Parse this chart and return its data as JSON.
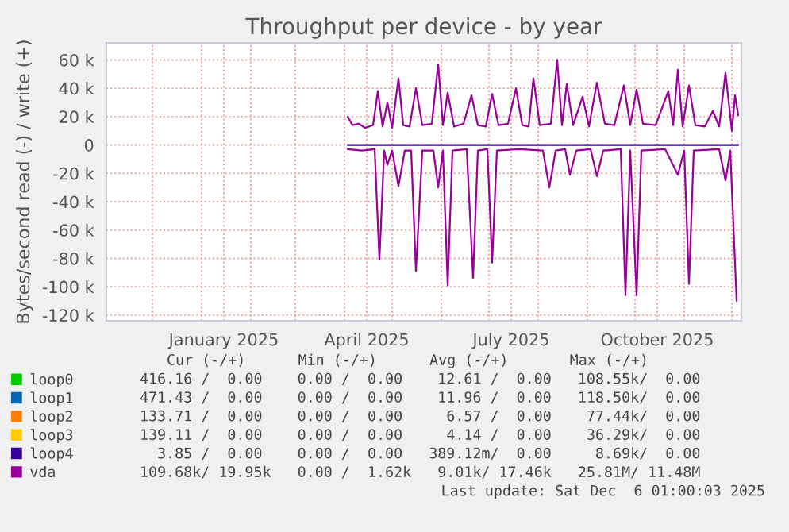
{
  "chart_data": {
    "type": "line",
    "title": "Throughput per device - by year",
    "ylabel": "Bytes/second read (-) / write (+)",
    "xlim": [
      "2024-11-02",
      "2025-12-07"
    ],
    "xticks": [
      {
        "value": "2024-12-01",
        "label": null
      },
      {
        "value": "2025-01-01",
        "label": null
      },
      {
        "value": "2025-01-15",
        "label": "January 2025"
      },
      {
        "value": "2025-02-01",
        "label": null
      },
      {
        "value": "2025-03-01",
        "label": null
      },
      {
        "value": "2025-04-01",
        "label": null
      },
      {
        "value": "2025-04-15",
        "label": "April 2025"
      },
      {
        "value": "2025-05-01",
        "label": null
      },
      {
        "value": "2025-06-01",
        "label": null
      },
      {
        "value": "2025-07-01",
        "label": null
      },
      {
        "value": "2025-07-15",
        "label": "July 2025"
      },
      {
        "value": "2025-08-01",
        "label": null
      },
      {
        "value": "2025-09-01",
        "label": null
      },
      {
        "value": "2025-10-01",
        "label": null
      },
      {
        "value": "2025-10-15",
        "label": "October 2025"
      },
      {
        "value": "2025-11-01",
        "label": null
      },
      {
        "value": "2025-12-01",
        "label": null
      }
    ],
    "ylim": [
      -124000,
      72000
    ],
    "yticks": [
      {
        "value": -120000,
        "label": "-120 k"
      },
      {
        "value": -100000,
        "label": "-100 k"
      },
      {
        "value": -80000,
        "label": "-80 k"
      },
      {
        "value": -60000,
        "label": "-60 k"
      },
      {
        "value": -40000,
        "label": "-40 k"
      },
      {
        "value": -20000,
        "label": "-20 k"
      },
      0,
      {
        "value": 20000,
        "label": "20 k"
      },
      {
        "value": 40000,
        "label": "40 k"
      },
      {
        "value": 60000,
        "label": "60 k"
      }
    ],
    "grid": true,
    "legend": "bottom",
    "marker": "none",
    "line_style": "solid",
    "series": [
      {
        "name": "loop0",
        "color": "#00cc00"
      },
      {
        "name": "loop1",
        "color": "#0066b3"
      },
      {
        "name": "loop2",
        "color": "#ff8000"
      },
      {
        "name": "loop3",
        "color": "#ffcc00"
      },
      {
        "name": "loop4",
        "color": "#330099",
        "x": [
          "2025-04-03",
          "2025-12-05"
        ],
        "values": [
          0,
          0
        ]
      },
      {
        "name": "vda",
        "color": "#990099",
        "x": [
          "2025-04-03",
          "2025-04-06",
          "2025-04-10",
          "2025-04-14",
          "2025-04-19",
          "2025-04-22",
          "2025-04-25",
          "2025-04-28",
          "2025-05-01",
          "2025-05-05",
          "2025-05-08",
          "2025-05-12",
          "2025-05-16",
          "2025-05-20",
          "2025-05-26",
          "2025-05-30",
          "2025-06-02",
          "2025-06-05",
          "2025-06-09",
          "2025-06-15",
          "2025-06-20",
          "2025-06-24",
          "2025-06-29",
          "2025-07-03",
          "2025-07-07",
          "2025-07-13",
          "2025-07-18",
          "2025-07-22",
          "2025-07-26",
          "2025-07-29",
          "2025-08-02",
          "2025-08-09",
          "2025-08-13",
          "2025-08-16",
          "2025-08-19",
          "2025-08-23",
          "2025-08-29",
          "2025-09-02",
          "2025-09-07",
          "2025-09-12",
          "2025-09-18",
          "2025-09-24",
          "2025-09-28",
          "2025-10-02",
          "2025-10-06",
          "2025-10-14",
          "2025-10-22",
          "2025-10-25",
          "2025-10-28",
          "2025-10-31",
          "2025-11-04",
          "2025-11-08",
          "2025-11-14",
          "2025-11-19",
          "2025-11-23",
          "2025-11-27",
          "2025-12-01",
          "2025-12-03",
          "2025-12-05"
        ],
        "values": [
          20000,
          14000,
          15000,
          12000,
          14000,
          38000,
          13000,
          30000,
          12000,
          47000,
          14000,
          13000,
          40000,
          14000,
          15000,
          57000,
          14000,
          37000,
          13000,
          15000,
          35000,
          14000,
          13000,
          36000,
          14000,
          15000,
          40000,
          14000,
          13000,
          47000,
          14000,
          15000,
          60000,
          14000,
          43000,
          14000,
          34000,
          13000,
          44000,
          15000,
          14000,
          42000,
          14000,
          39000,
          15000,
          14000,
          38000,
          14000,
          53000,
          13000,
          42000,
          14000,
          13000,
          24000,
          13000,
          51000,
          10000,
          35000,
          21000
        ]
      },
      {
        "color": "#990099",
        "x": [
          "2025-04-03",
          "2025-04-12",
          "2025-04-20",
          "2025-04-23",
          "2025-04-26",
          "2025-04-28",
          "2025-05-01",
          "2025-05-05",
          "2025-05-09",
          "2025-05-13",
          "2025-05-16",
          "2025-05-20",
          "2025-05-27",
          "2025-05-30",
          "2025-06-02",
          "2025-06-05",
          "2025-06-08",
          "2025-06-17",
          "2025-06-21",
          "2025-06-24",
          "2025-06-30",
          "2025-07-03",
          "2025-07-06",
          "2025-07-20",
          "2025-08-04",
          "2025-08-08",
          "2025-08-12",
          "2025-08-18",
          "2025-08-21",
          "2025-08-25",
          "2025-09-03",
          "2025-09-07",
          "2025-09-11",
          "2025-09-22",
          "2025-09-25",
          "2025-09-28",
          "2025-10-02",
          "2025-10-05",
          "2025-10-20",
          "2025-10-28",
          "2025-11-01",
          "2025-11-04",
          "2025-11-07",
          "2025-11-23",
          "2025-11-27",
          "2025-11-30",
          "2025-12-04"
        ],
        "values": [
          -3000,
          -4000,
          -3000,
          -81000,
          -4000,
          -14000,
          -4000,
          -29000,
          -4000,
          -4000,
          -89000,
          -4000,
          -4000,
          -30000,
          -4000,
          -99000,
          -4000,
          -3000,
          -94000,
          -4000,
          -3000,
          -83000,
          -4000,
          -3000,
          -4000,
          -30000,
          -4000,
          -3000,
          -21000,
          -4000,
          -3000,
          -22000,
          -4000,
          -3000,
          -106000,
          -4000,
          -106000,
          -4000,
          -3000,
          -21000,
          -4000,
          -98000,
          -4000,
          -3000,
          -25000,
          -4000,
          -110000
        ]
      }
    ],
    "annotations": [
      "Cur (-/+)      Min (-/+)      Avg (-/+)       Max (-/+)",
      "416.16 /  0.00    0.00 /  0.00    12.61 /  0.00   108.55k/  0.00",
      "471.43 /  0.00    0.00 /  0.00    11.96 /  0.00   118.50k/  0.00",
      "133.71 /  0.00    0.00 /  0.00     6.57 /  0.00    77.44k/  0.00",
      "139.11 /  0.00    0.00 /  0.00     4.14 /  0.00    36.29k/  0.00",
      "  3.85 /  0.00    0.00 /  0.00   389.12m/  0.00     8.69k/  0.00",
      "109.68k/ 19.95k   0.00 /  1.62k   9.01k/ 17.46k   25.81M/ 11.48M",
      "Last update: Sat Dec  6 01:00:03 2025"
    ]
  }
}
